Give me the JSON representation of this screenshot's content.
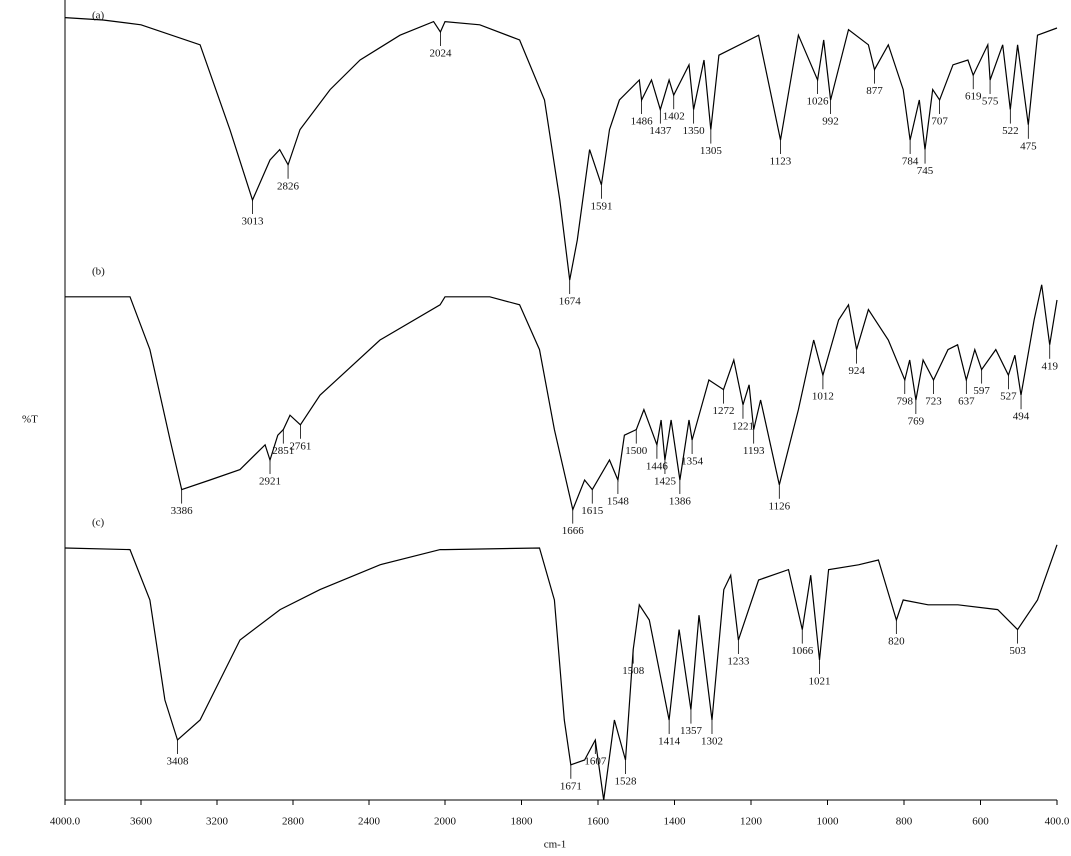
{
  "chart_data": {
    "type": "line",
    "x_label": "cm-1",
    "y_label": "%T",
    "xlim": [
      4000,
      400
    ],
    "x_scale_break": 2000,
    "xticks": [
      {
        "value": 4000,
        "label": "4000.0"
      },
      3600,
      3200,
      2800,
      2400,
      2000,
      1800,
      1600,
      1400,
      1200,
      1000,
      800,
      600,
      {
        "value": 400,
        "label": "400.0"
      }
    ],
    "ylim": [
      0,
      100
    ],
    "grid": false,
    "series": [
      {
        "name": "(a)",
        "color": "#000000",
        "x": [
          4000,
          3800,
          3600,
          3289,
          3132,
          3013,
          2921,
          2870,
          2826,
          2763,
          2605,
          2447,
          2237,
          2060,
          2024,
          2000,
          1909,
          1805,
          1740,
          1700,
          1674,
          1654,
          1622,
          1591,
          1570,
          1544,
          1492,
          1486,
          1460,
          1437,
          1414,
          1402,
          1362,
          1350,
          1323,
          1305,
          1284,
          1180,
          1123,
          1076,
          1026,
          1010,
          992,
          945,
          893,
          877,
          841,
          802,
          784,
          760,
          745,
          725,
          707,
          672,
          633,
          619,
          581,
          575,
          542,
          522,
          503,
          475,
          451,
          400
        ],
        "values": [
          97.8,
          97.5,
          96.9,
          94.4,
          83.8,
          75,
          80,
          81.3,
          79.4,
          83.8,
          88.8,
          92.5,
          95.6,
          97.3,
          96,
          97.3,
          96.9,
          95,
          87.5,
          75,
          65,
          70,
          81.3,
          76.9,
          83.8,
          87.5,
          90,
          87.5,
          90,
          86.3,
          90,
          88.1,
          91.9,
          86.3,
          92.5,
          83.8,
          93.1,
          95.6,
          82.5,
          95.6,
          90,
          95,
          87.5,
          96.3,
          94.4,
          91.3,
          94.4,
          88.8,
          82.5,
          87.5,
          81.3,
          88.8,
          87.5,
          91.9,
          92.5,
          90.6,
          94.4,
          90,
          94.4,
          86.3,
          94.4,
          84.4,
          95.6,
          96.5
        ],
        "peaks": [
          3013,
          2826,
          2024,
          1674,
          1591,
          1486,
          1437,
          1402,
          1350,
          1305,
          1123,
          1026,
          992,
          877,
          784,
          745,
          707,
          619,
          575,
          522,
          475
        ]
      },
      {
        "name": "(b)",
        "color": "#000000",
        "x": [
          4000,
          3658,
          3553,
          3447,
          3386,
          3237,
          3079,
          2947,
          2921,
          2880,
          2851,
          2816,
          2761,
          2658,
          2342,
          2026,
          2000,
          1883,
          1805,
          1753,
          1714,
          1666,
          1635,
          1615,
          1570,
          1548,
          1531,
          1500,
          1480,
          1446,
          1435,
          1425,
          1409,
          1386,
          1362,
          1354,
          1310,
          1272,
          1245,
          1221,
          1205,
          1193,
          1175,
          1126,
          1076,
          1036,
          1012,
          971,
          945,
          924,
          893,
          841,
          798,
          785,
          769,
          750,
          723,
          685,
          660,
          637,
          615,
          597,
          560,
          527,
          510,
          494,
          460,
          440,
          419,
          400
        ],
        "values": [
          62.9,
          62.9,
          56.3,
          45,
          38.8,
          40,
          41.3,
          44.4,
          42.5,
          45.6,
          46.3,
          48.1,
          46.9,
          50.6,
          57.5,
          61.9,
          62.9,
          62.9,
          61.9,
          56.3,
          46.3,
          36.3,
          40,
          38.8,
          42.5,
          40,
          45.6,
          46.3,
          48.8,
          44.4,
          47.5,
          42.5,
          47.5,
          40,
          47.5,
          45,
          52.5,
          51.3,
          55,
          49.4,
          51.9,
          46.3,
          50,
          39.4,
          48.8,
          57.5,
          53.1,
          60,
          61.9,
          56.3,
          61.3,
          57.5,
          52.5,
          55,
          50,
          55,
          52.5,
          56.3,
          56.9,
          52.5,
          56.3,
          53.8,
          56.3,
          53.1,
          55.6,
          50.6,
          60,
          64.4,
          56.9,
          62.5
        ],
        "peaks": [
          3386,
          2921,
          2851,
          2761,
          1666,
          1615,
          1548,
          1500,
          1446,
          1425,
          1386,
          1354,
          1272,
          1221,
          1193,
          1126,
          1012,
          924,
          798,
          769,
          723,
          637,
          597,
          527,
          494,
          419
        ]
      },
      {
        "name": "(c)",
        "color": "#000000",
        "x": [
          4000,
          3658,
          3553,
          3474,
          3408,
          3289,
          3079,
          2868,
          2658,
          2342,
          2026,
          2000,
          1753,
          1714,
          1688,
          1671,
          1635,
          1607,
          1585,
          1557,
          1528,
          1508,
          1492,
          1466,
          1414,
          1388,
          1357,
          1336,
          1302,
          1271,
          1253,
          1233,
          1180,
          1102,
          1066,
          1044,
          1021,
          997,
          919,
          867,
          820,
          802,
          737,
          659,
          555,
          503,
          451,
          400
        ],
        "values": [
          31.5,
          31.3,
          25,
          12.5,
          7.5,
          10,
          20,
          23.8,
          26.3,
          29.4,
          31.3,
          31.3,
          31.5,
          25,
          10,
          4.4,
          5,
          7.5,
          0,
          10,
          5,
          18.8,
          24.4,
          22.5,
          10,
          21.3,
          11.3,
          23.1,
          10,
          26.3,
          28.1,
          20,
          27.5,
          28.8,
          21.3,
          28.1,
          17.5,
          28.8,
          29.4,
          30,
          22.5,
          25,
          24.4,
          24.4,
          23.8,
          21.3,
          25,
          31.9
        ],
        "peaks": [
          3408,
          1671,
          1607,
          1528,
          1508,
          1414,
          1357,
          1302,
          1233,
          1066,
          1021,
          820,
          503
        ]
      }
    ]
  }
}
